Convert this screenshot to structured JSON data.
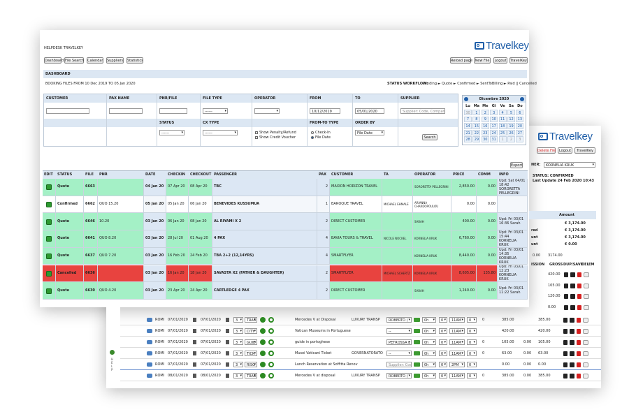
{
  "front": {
    "brand": "Travelkey",
    "header": "HELPDESK TRAVELKEY",
    "nav": [
      "Dashboard",
      "File Search",
      "Calendar",
      "Suppliers",
      "Statistics"
    ],
    "actions": [
      "Reload page",
      "New File",
      "Logout",
      "TravelKey"
    ],
    "dashboard": "DASHBOARD",
    "range": "BOOKING FILES FROM 10 Dec 2019 TO 05 Jan 2020",
    "workflow_label": "STATUS WORKFLOW:",
    "workflow": "Pending ► Quote ► Confirmed ► SentToBilling ► Paid || Cancelled",
    "filters": {
      "labels": [
        "CUSTOMER",
        "PAX NAME",
        "PNR/FILE",
        "FILE TYPE",
        "OPERATOR",
        "FROM",
        "TO",
        "SUPPLIER"
      ],
      "labels2": [
        "STATUS",
        "CX TYPE",
        "FROM-TO TYPE",
        "ORDER BY"
      ],
      "select_blank": "------",
      "from": "10/12/2019",
      "to": "05/01/2020",
      "supplier_placeholder": "Supplier: Code, Company n",
      "checks": [
        "Show Penalty/Refund",
        "Show Credit Voucher"
      ],
      "radios": [
        "Check-In",
        "File Date"
      ],
      "order": "File Date",
      "search": "Search"
    },
    "calendar": {
      "month": "Dicembre 2020",
      "days": [
        "Lu",
        "Ma",
        "Me",
        "Gi",
        "Ve",
        "Sa",
        "Do"
      ],
      "weeks": [
        [
          30,
          1,
          2,
          3,
          4,
          5,
          6
        ],
        [
          7,
          8,
          9,
          10,
          11,
          12,
          13
        ],
        [
          14,
          15,
          16,
          17,
          18,
          19,
          20
        ],
        [
          21,
          22,
          23,
          24,
          25,
          26,
          27
        ],
        [
          28,
          29,
          30,
          31,
          1,
          2,
          3
        ]
      ]
    },
    "export": "Export",
    "table": {
      "columns": [
        "EDIT",
        "STATUS",
        "FILE",
        "PNR",
        "DATE",
        "CHECKIN",
        "CHECKOUT",
        "PASSENGER",
        "PAX",
        "CUSTOMER",
        "TA",
        "OPERATOR",
        "PRICE",
        "COMM",
        "INFO"
      ],
      "rows": [
        {
          "color": "#a4f0c6",
          "cells": [
            "Quote",
            "6663",
            null,
            "04 Jan 20",
            "07 Apr 20",
            "08 Apr 20",
            "TBC",
            "2",
            "MAXION HORIZON TRAVEL",
            null,
            "SORORETTA PELLEGRINI",
            "2,850.00",
            "0.00",
            "Upd: Sat 04/01 18:42 SORORETTA PELLEGRINI"
          ]
        },
        {
          "color": "#ffffff",
          "cells": [
            "Confirmed",
            "6662",
            "QUO 15.20",
            "05 Jan 20",
            "05 Jan 20",
            "06 Jan 20",
            "BENEVIDES KUSSUMUA",
            "1",
            "BAROQUE TRAVEL",
            "MICHAEL EHMALE",
            "ARIANNA CHARDOPOULOU",
            "0.00",
            "0.00",
            null
          ]
        },
        {
          "color": "#a4f0c6",
          "cells": [
            "Quote",
            "6646",
            "10.20",
            "03 Jan 20",
            "06 Jan 20",
            "08 Jan 20",
            "AL RIYAMI X 2",
            "2",
            "DIRECT CUSTOMER",
            null,
            "SARAH",
            "400.00",
            "0.00",
            "Upd: Fri 03/01 16:36 Sarah"
          ]
        },
        {
          "color": "#a4f0c6",
          "cells": [
            "Quote",
            "6641",
            "QUO 8.20",
            "03 Jan 20",
            "28 Jul 20",
            "01 Aug 20",
            "4 PAX",
            "4",
            "BAVIA TOURS & TRAVEL",
            "NICOLE NOCKEL",
            "KORNELIA KRUK",
            "6,760.00",
            "0.00",
            "Upd: Fri 03/01 15:44 KORNELIA KRUK"
          ]
        },
        {
          "color": "#a4f0c6",
          "cells": [
            "Quote",
            "6637",
            "QUO 7.20",
            "03 Jan 20",
            "16 Feb 20",
            "24 Feb 20",
            "TBA 2+2 (12,14YRS)",
            "4",
            "SMARTFLYER",
            null,
            "KORNELIA KRUK",
            "8,440.00",
            "0.00",
            "Upd: Fri 03/01 14:35 KORNELIA KRUK"
          ]
        },
        {
          "color": "#e8433f",
          "cells": [
            "Cancelled",
            "6636",
            null,
            "03 Jan 20",
            "16 Jan 20",
            "18 Jan 20",
            "SAVASTA X2 (FATHER & DAUGHTER)",
            "2",
            "SMARTFLYER",
            "MICHAEL SCHERTZ",
            "KORNELIA KRUK",
            "8,605.00",
            "135.80",
            "Upd: Fri 03/01 12:23 KORNELIA KRUK"
          ]
        },
        {
          "color": "#a4f0c6",
          "cells": [
            "Quote",
            "6630",
            "QUO 4.20",
            "03 Jan 20",
            "23 Apr 20",
            "24 Apr 20",
            "CARTLEDGE 4 PAX",
            "2",
            "DIRECT CUSTOMER",
            null,
            "SARAH",
            "1,240.00",
            "0.00",
            "Upd: Fri 03/01 11:22 Sarah"
          ]
        }
      ]
    }
  },
  "back": {
    "brand": "Travelkey",
    "actions": [
      "Delete File",
      "Logout",
      "TravelKey"
    ],
    "owner_label": "NER:",
    "owner": "KORNELIA KRUK",
    "status": "STATUS: CONFIRMED",
    "updated": "Last Update 24 Feb 2020 10:43",
    "amount_header": "Amount",
    "amounts": [
      {
        "amount": "€ 3,174.00"
      },
      {
        "label": "red",
        "amount": "€ 3,174.00"
      },
      {
        "label": "unt",
        "amount": "€ 3,174.00"
      },
      {
        "label": "unt",
        "amount": "€ 0.00"
      }
    ],
    "totals": [
      "0.00",
      "3174.00"
    ],
    "columns": [
      "ISSION",
      "GROSS",
      "DUP/SAVE",
      "DEL",
      "EM"
    ],
    "side_values": [
      "420.00",
      "105.00",
      "120.00",
      "0.00"
    ],
    "help": "HELP",
    "rows": [
      {
        "city": "ROMI",
        "from": "07/01/2020",
        "to": "07/01/2020",
        "pax": "3",
        "code": "TRAS",
        "desc": "Mercedes V at Disposal",
        "stype": "LUXURY TRANSP",
        "supplier": "ROBERTO (",
        "dur": "0h",
        "min": "0",
        "time": "11AM",
        "sel": "0",
        "qty": "0",
        "cost": "385.00",
        "gross": "385.00"
      },
      {
        "city": "ROMI",
        "from": "07/01/2020",
        "to": "07/01/2020",
        "pax": "3",
        "code": "CITY",
        "desc": "Vatican Museums in Portuguese",
        "supplier": "--",
        "dur": "0h",
        "min": "0",
        "time": "11AM",
        "sel": "0",
        "cost": "420.00",
        "gross": "420.00"
      },
      {
        "city": "ROMI",
        "from": "07/01/2020",
        "to": "07/01/2020",
        "pax": "3",
        "code": "GUID",
        "desc": "guide in portoghese",
        "supplier": "PETROSSA L",
        "dur": "0h",
        "min": "0",
        "time": "11AM",
        "sel": "0",
        "qty": "0",
        "cost": "105.00",
        "comm": "0.00",
        "gross": "105.00"
      },
      {
        "city": "ROMI",
        "from": "07/01/2020",
        "to": "07/01/2020",
        "pax": "3",
        "code": "TICK",
        "desc": "Musei Vaticani Ticket",
        "stype": "GOVERNATORATO",
        "supplier": "--",
        "dur": "0h",
        "min": "0",
        "time": "11AM",
        "sel": "0",
        "qty": "0",
        "cost": "63.00",
        "comm": "0.00",
        "gross": "63.00"
      },
      {
        "city": "ROMI",
        "from": "07/01/2020",
        "to": "07/01/2020",
        "pax": "3",
        "code": "RISO",
        "desc": "Lunch Reservation at Soffitta Renov",
        "supplier_input": "Supplier: Code, C",
        "dur": "0h",
        "min": "0",
        "time": "2PM",
        "sel": "0",
        "cost": "0.00",
        "comm": "0.00",
        "gross": "0.00"
      },
      {
        "city": "ROMI",
        "from": "08/01/2020",
        "to": "08/01/2020",
        "pax": "3",
        "code": "TRAS",
        "desc": "Mercedes V at disposal",
        "stype": "LUXURY TRANSP",
        "supplier": "ROBERTO (",
        "dur": "0h",
        "min": "0",
        "time": "11AM",
        "sel": "0",
        "qty": "0",
        "cost": "385.00",
        "comm": "0.00",
        "gross": "385.00"
      }
    ]
  }
}
